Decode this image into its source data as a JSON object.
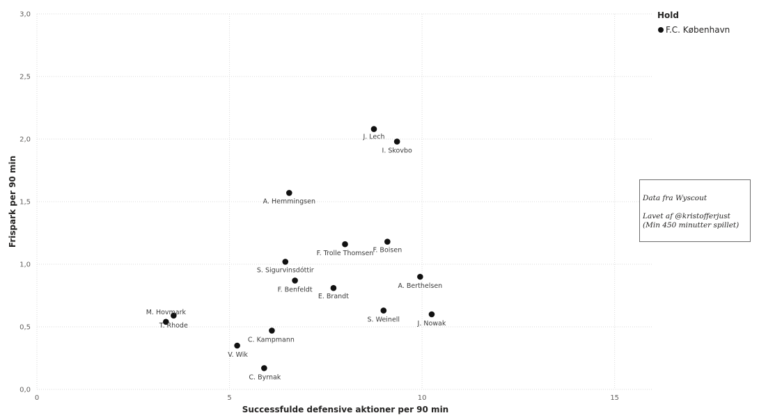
{
  "chart_data": {
    "type": "scatter",
    "xlabel": "Successfulde defensive aktioner per 90 min",
    "ylabel": "Frispark per 90 min",
    "xlim": [
      0,
      16
    ],
    "ylim": [
      0,
      3.0
    ],
    "x_ticks": [
      "0",
      "5",
      "10",
      "15"
    ],
    "y_ticks": [
      "0,0",
      "0,5",
      "1,0",
      "1,5",
      "2,0",
      "2,5",
      "3,0"
    ],
    "grid": true,
    "legend": {
      "title": "Hold",
      "placement": "top-right",
      "items": [
        {
          "name": "F.C. København",
          "color": "#111111"
        }
      ]
    },
    "points": [
      {
        "label": "J. Lech",
        "x": 8.75,
        "y": 2.08
      },
      {
        "label": "I. Skovbo",
        "x": 9.35,
        "y": 1.98
      },
      {
        "label": "A. Hemmingsen",
        "x": 6.55,
        "y": 1.57
      },
      {
        "label": "F. Boisen",
        "x": 9.1,
        "y": 1.18
      },
      {
        "label": "F. Trolle Thomsen",
        "x": 8.0,
        "y": 1.16
      },
      {
        "label": "S. Sigurvinsdóttir",
        "x": 6.45,
        "y": 1.02
      },
      {
        "label": "A. Berthelsen",
        "x": 9.95,
        "y": 0.9
      },
      {
        "label": "F. Benfeldt",
        "x": 6.7,
        "y": 0.87
      },
      {
        "label": "E. Brandt",
        "x": 7.7,
        "y": 0.81
      },
      {
        "label": "S. Weinell",
        "x": 9.0,
        "y": 0.63
      },
      {
        "label": "J. Nowak",
        "x": 10.25,
        "y": 0.6
      },
      {
        "label": "M. Hovmark",
        "x": 3.55,
        "y": 0.59
      },
      {
        "label": "T. Rhode",
        "x": 3.35,
        "y": 0.54
      },
      {
        "label": "C. Kampmann",
        "x": 6.1,
        "y": 0.47
      },
      {
        "label": "V. Wik",
        "x": 5.2,
        "y": 0.35
      },
      {
        "label": "C. Byrnak",
        "x": 5.9,
        "y": 0.17
      }
    ]
  },
  "annotation": {
    "source": "Data fra Wyscout",
    "author": "Lavet af @kristofferjust",
    "note": "(Min 450 minutter spillet)"
  }
}
